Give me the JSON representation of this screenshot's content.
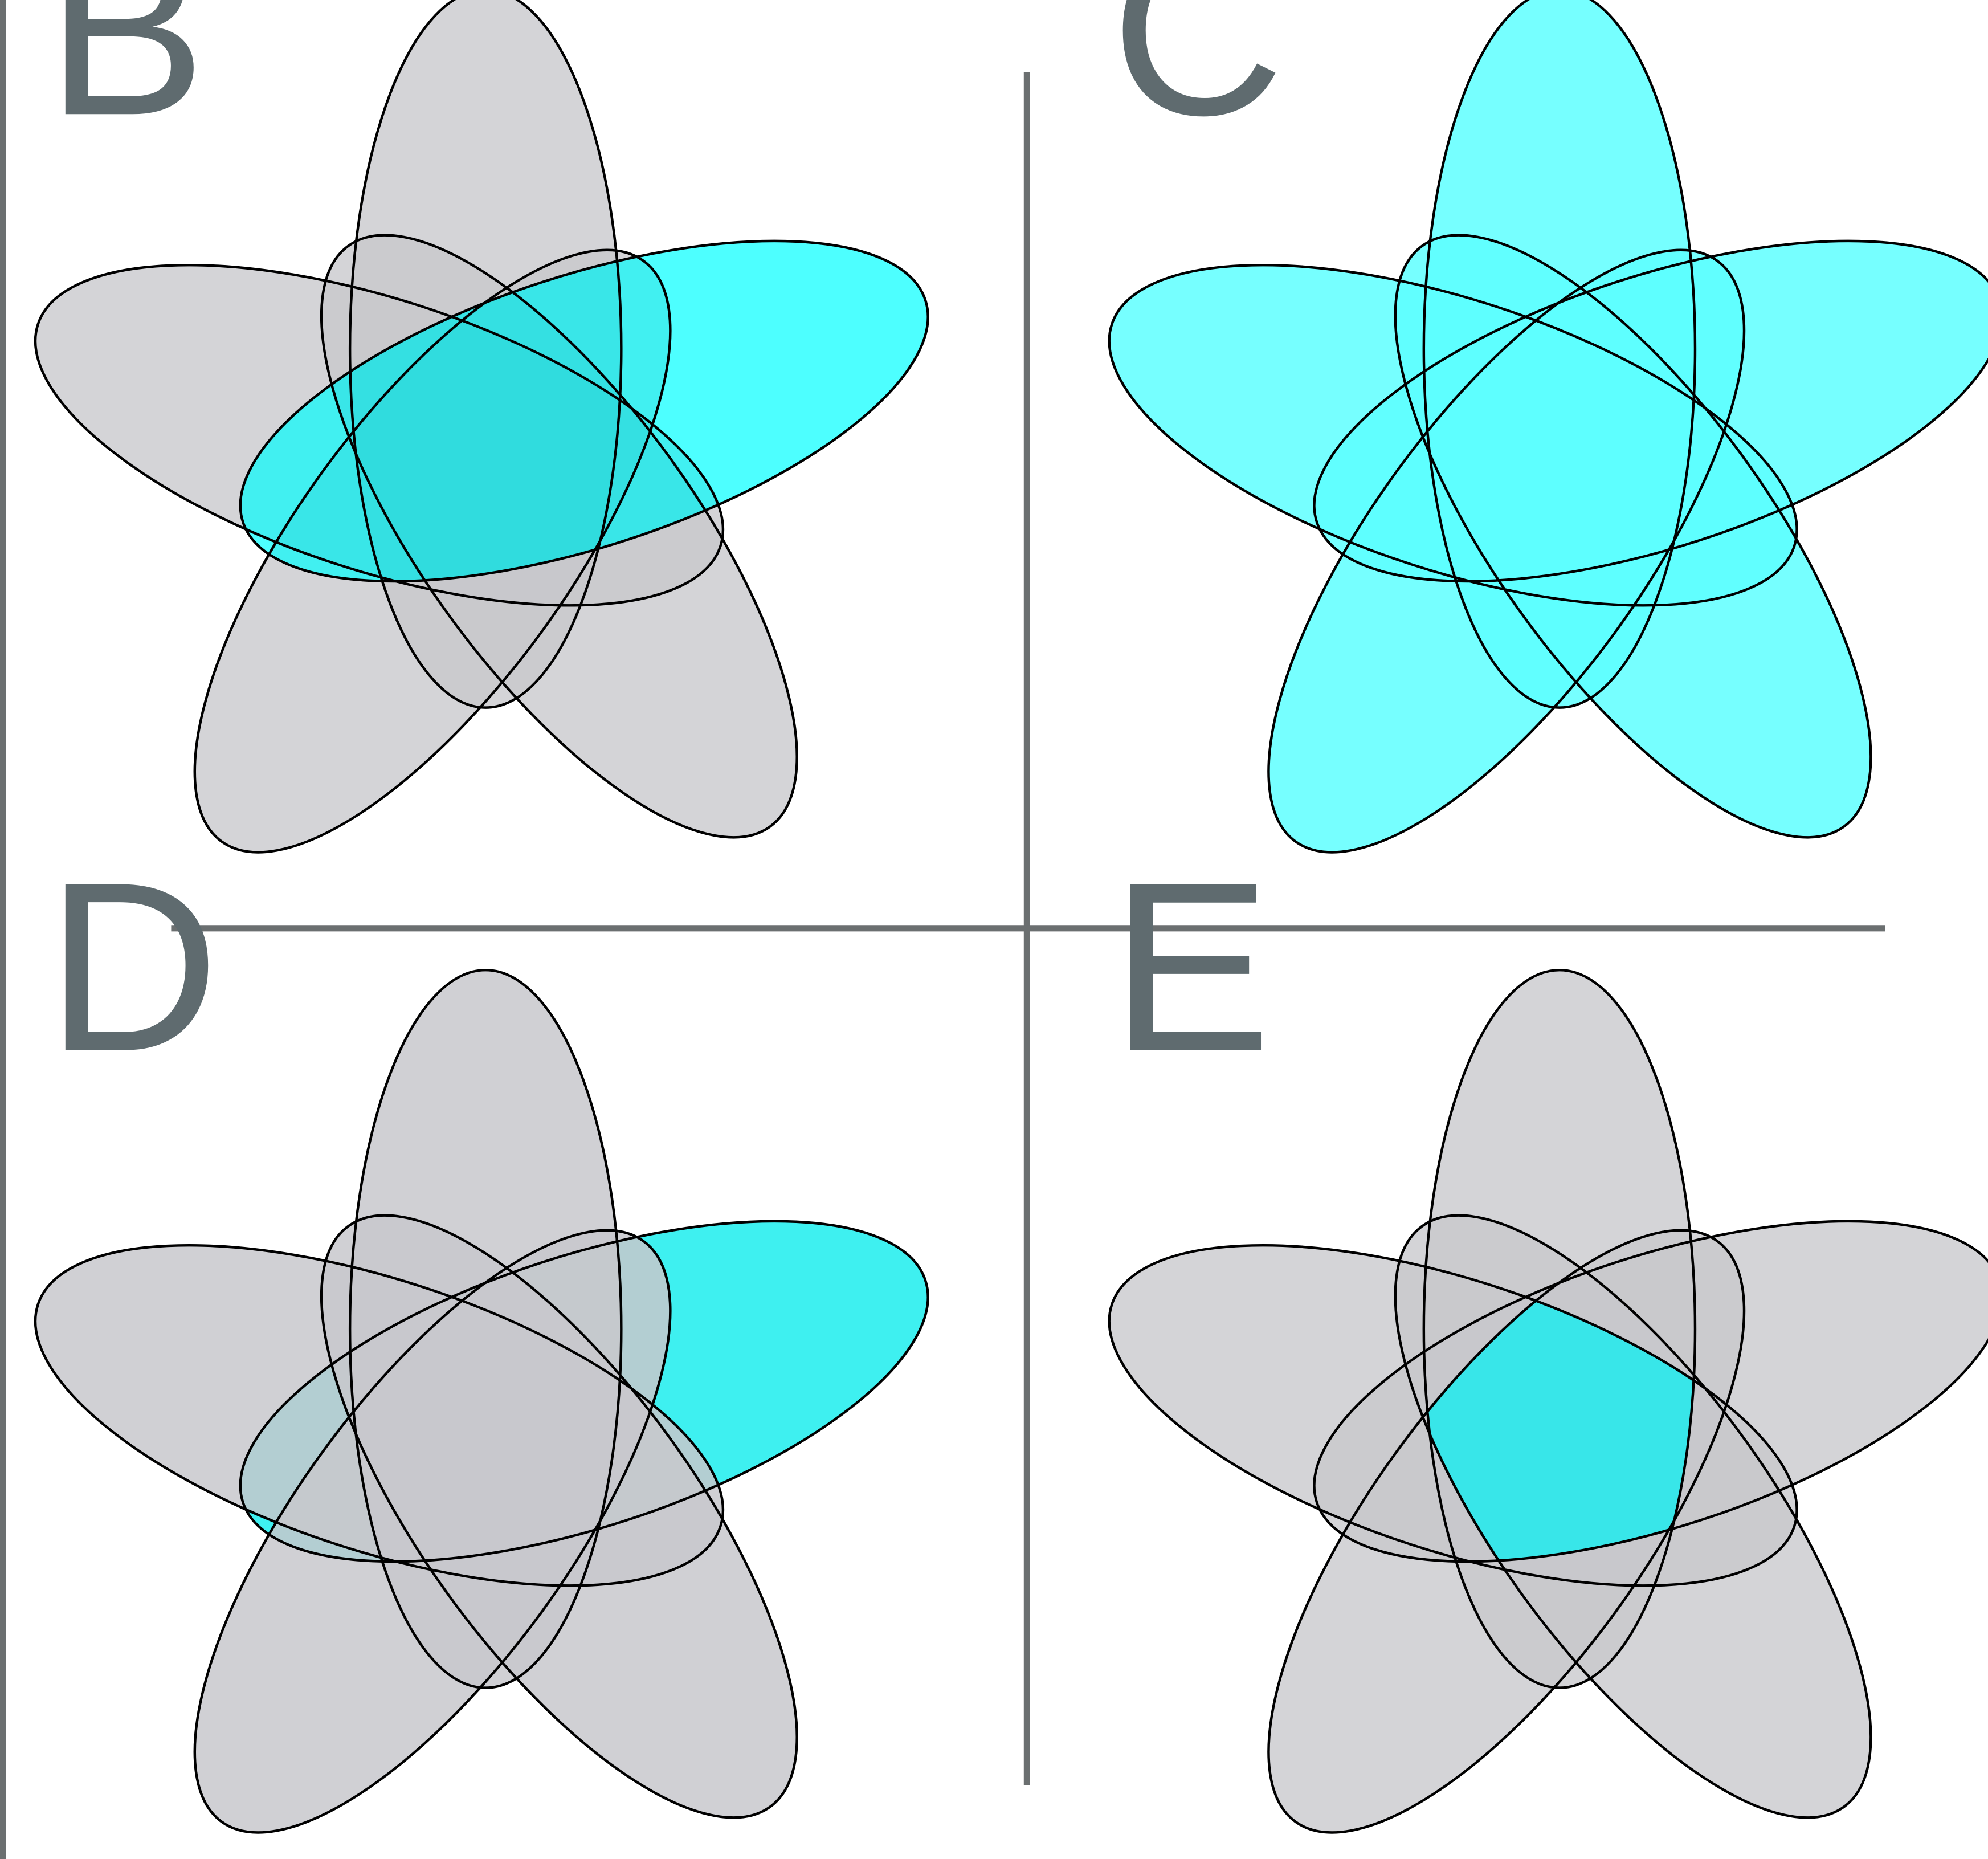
{
  "figure": {
    "panels": [
      {
        "id": "B",
        "label": "B",
        "highlight": "single-set"
      },
      {
        "id": "C",
        "label": "C",
        "highlight": "union"
      },
      {
        "id": "D",
        "label": "D",
        "highlight": "set-only"
      },
      {
        "id": "E",
        "label": "E",
        "highlight": "intersection-all"
      }
    ]
  },
  "colors": {
    "label_text": "#5f6b6f",
    "divider": "#6b6f70",
    "outline": "#000000",
    "gray_fill": "#c5c5c9",
    "gray_overlay": "#b8b8bd",
    "cyan": "#4dffff",
    "cyan_light": "#6fffff",
    "cyan_mid": "#38e6e9",
    "cyan_bright": "#00ffff"
  }
}
